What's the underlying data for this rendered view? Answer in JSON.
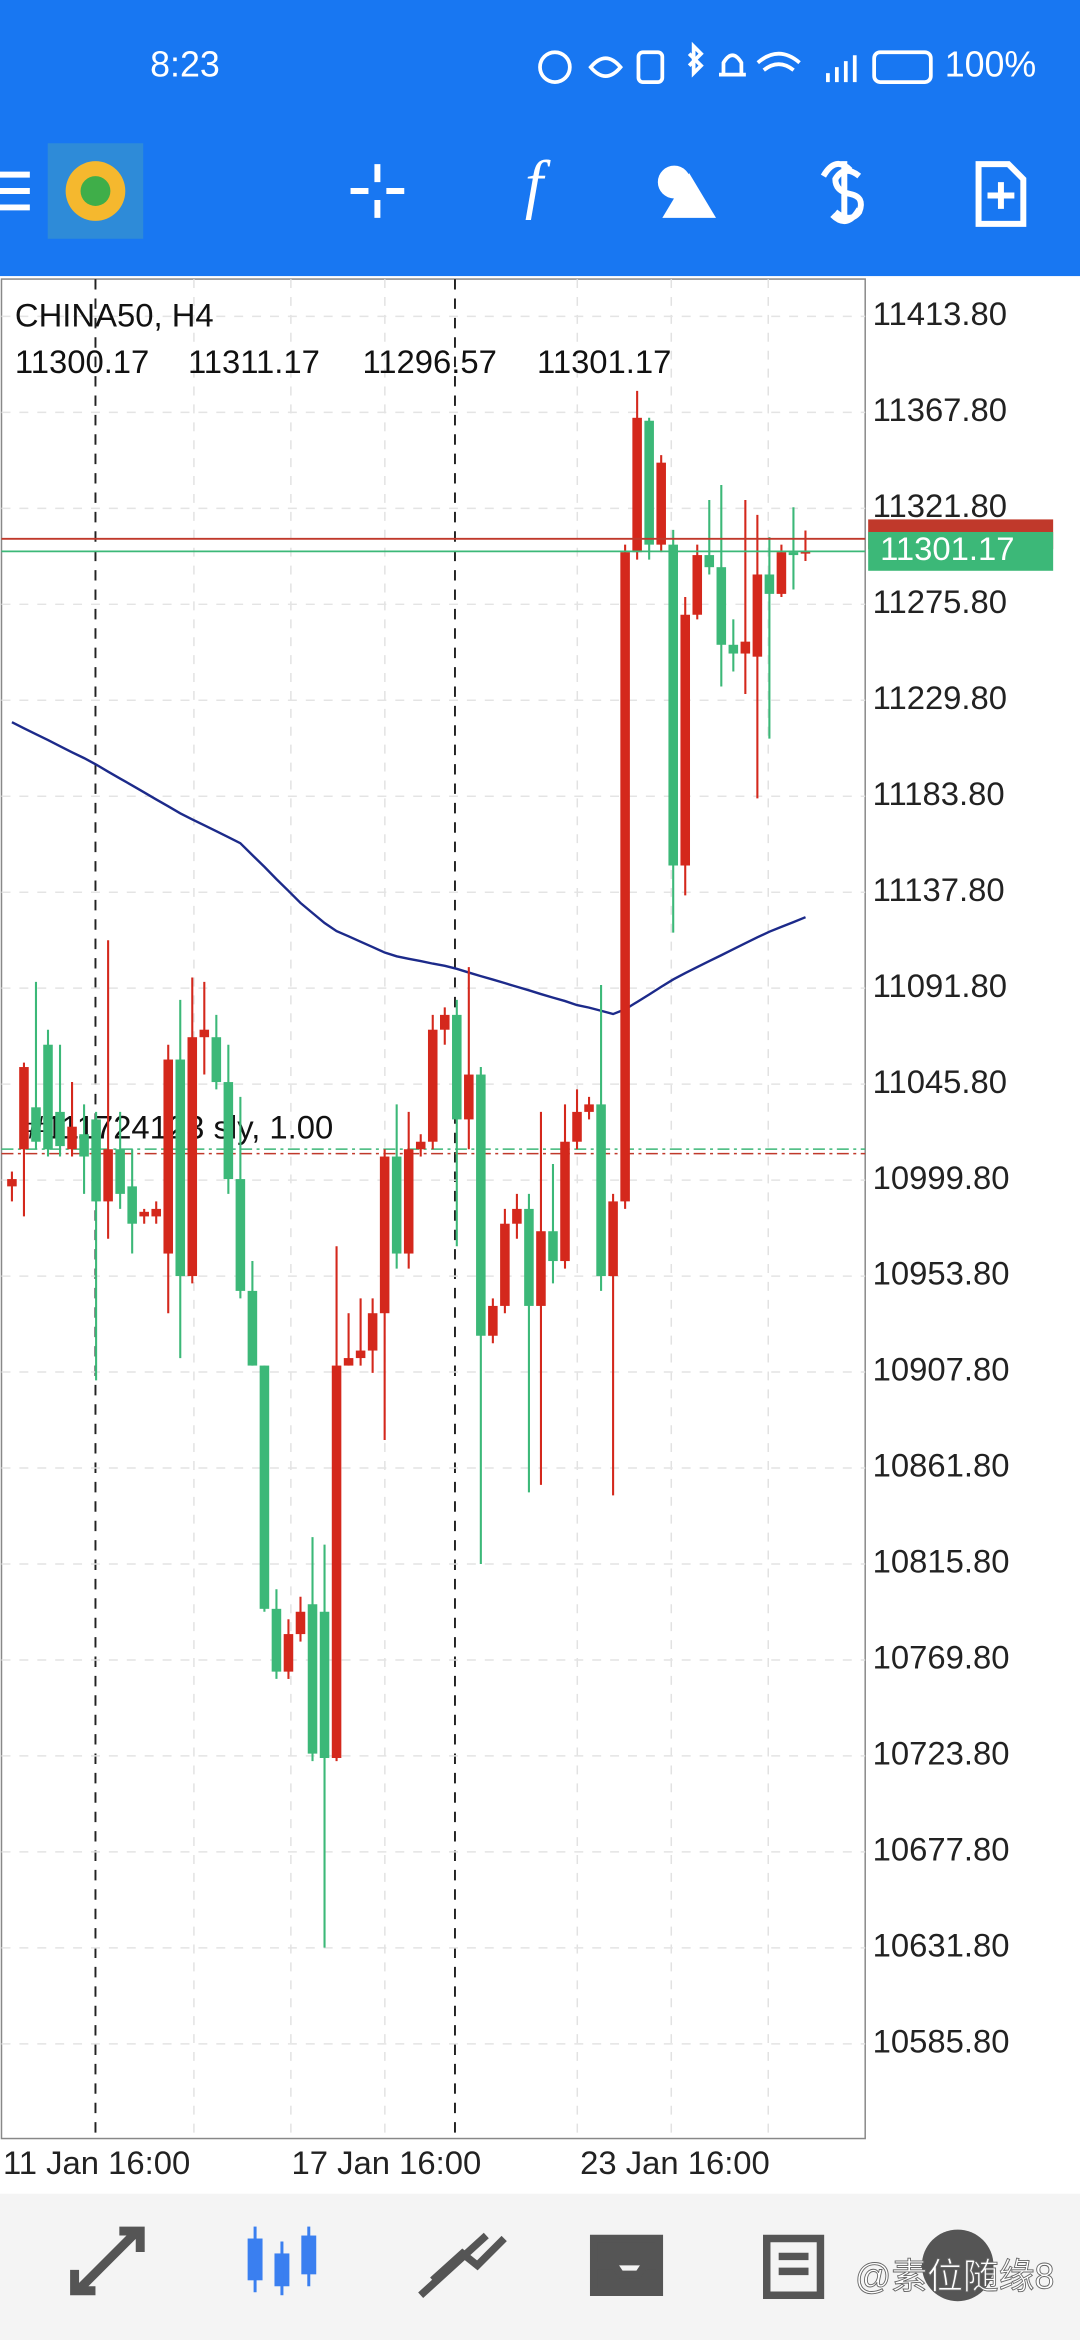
{
  "status_bar": {
    "time": "8:23",
    "battery": "100%"
  },
  "toolbar": {
    "indicator_icon": "f"
  },
  "chart_data": {
    "type": "candlestick",
    "title": "CHINA50, H4",
    "categories": [
      "11 Jan 16:00",
      null,
      null,
      null,
      null,
      null,
      null,
      null,
      null,
      null,
      null,
      null,
      null,
      null,
      null,
      null,
      null,
      null,
      null,
      null,
      null,
      null,
      null,
      null,
      "17 Jan 16:00",
      null,
      null,
      null,
      null,
      null,
      null,
      null,
      null,
      null,
      null,
      null,
      null,
      null,
      null,
      null,
      null,
      null,
      null,
      null,
      null,
      null,
      null,
      null,
      "23 Jan 16:00",
      null,
      null,
      null,
      null,
      null,
      null,
      null,
      null,
      null,
      null,
      null,
      null,
      null,
      null,
      null,
      null,
      null,
      null
    ],
    "open": [
      10996.8,
      11014.6,
      11034.7,
      11064.7,
      11032.5,
      11014.6,
      11021.8,
      11028.9,
      10989.6,
      11014.6,
      10996.8,
      10982.4,
      10982.4,
      10964.6,
      11057.6,
      10953.8,
      11068.3,
      11068.3,
      11046.8,
      11000.3,
      10946.7,
      10910.9,
      10794.3,
      10764.2,
      10782.2,
      10796.5,
      10792.9,
      10722.8,
      10910.9,
      10914.5,
      10918.1,
      10936.0,
      11011.1,
      10964.6,
      11014.6,
      11018.2,
      11071.9,
      11079.0,
      11028.9,
      11050.4,
      10925.2,
      10939.5,
      10978.9,
      10986.0,
      10939.5,
      10975.3,
      10961.0,
      11018.2,
      11032.5,
      11036.1,
      10953.8,
      10989.6,
      11300.8,
      11363.8,
      11304.4,
      11304.4,
      11150.6,
      11270.8,
      11299.4,
      11293.6,
      11256.4,
      11252.2,
      11250.7,
      11290.1,
      11280.8,
      11300.8,
      11300.17
    ],
    "high": [
      11003.9,
      11056.1,
      11094.8,
      11071.9,
      11064.7,
      11046.8,
      11036.1,
      11032.5,
      11114.8,
      11032.5,
      11014.6,
      10986.0,
      10989.6,
      11064.7,
      11086.2,
      11096.9,
      11094.8,
      11079.0,
      11064.7,
      11039.7,
      10961.0,
      10910.9,
      10803.7,
      10789.3,
      10800.1,
      10828.7,
      10825.1,
      10968.1,
      10936.0,
      10943.1,
      10943.1,
      11014.6,
      11036.1,
      11032.5,
      11021.8,
      11079.0,
      11082.6,
      11086.2,
      11101.9,
      11054.0,
      10943.1,
      10986.0,
      10993.2,
      10993.2,
      11032.5,
      11007.5,
      11036.1,
      11043.3,
      11039.7,
      11093.3,
      10993.2,
      11304.4,
      11378.1,
      11365.2,
      11347.3,
      11311.5,
      11279.3,
      11304.4,
      11325.8,
      11333.0,
      11268.6,
      11325.8,
      11318.7,
      11308.0,
      11304.4,
      11322.3,
      11311.17
    ],
    "low": [
      10989.6,
      10982.4,
      11014.6,
      11011.1,
      11011.1,
      11011.1,
      10993.2,
      10903.8,
      10971.7,
      10986.0,
      10964.6,
      10978.9,
      10978.9,
      10936.0,
      10914.5,
      10950.3,
      11050.4,
      11043.3,
      10993.2,
      10943.1,
      10910.9,
      10792.9,
      10760.7,
      10760.7,
      10778.6,
      10721.3,
      10631.9,
      10721.3,
      10910.9,
      10910.9,
      10907.4,
      10875.2,
      10957.4,
      10957.4,
      11011.1,
      11014.6,
      11064.7,
      10968.1,
      11014.6,
      10815.8,
      10921.6,
      10936.0,
      10971.7,
      10850.1,
      10853.7,
      10950.3,
      10957.4,
      11014.6,
      11028.9,
      10946.7,
      10848.7,
      10986.0,
      11297.2,
      11297.2,
      11300.8,
      11118.4,
      11136.3,
      11268.6,
      11290.1,
      11236.4,
      11243.6,
      11232.8,
      11182.8,
      11211.4,
      11279.3,
      11282.9,
      11296.57
    ],
    "close": [
      11000.3,
      11054.0,
      11018.2,
      11014.6,
      11016.1,
      11025.4,
      11011.1,
      10989.6,
      11014.6,
      10993.2,
      10978.9,
      10984.6,
      10986.0,
      11057.6,
      10953.8,
      11068.3,
      11071.9,
      11046.8,
      11000.3,
      10946.7,
      10910.9,
      10794.3,
      10764.2,
      10782.2,
      10792.9,
      10724.9,
      10722.8,
      10910.9,
      10914.5,
      10918.1,
      10936.0,
      11011.1,
      10964.6,
      11014.6,
      11018.2,
      11071.9,
      11079.0,
      11028.9,
      11050.4,
      10925.2,
      10939.5,
      10978.9,
      10986.0,
      10939.5,
      10975.3,
      10961.0,
      11018.2,
      11032.5,
      11036.1,
      10953.8,
      10989.6,
      11300.8,
      11365.2,
      11304.4,
      11343.7,
      11150.6,
      11270.8,
      11299.4,
      11293.6,
      11256.4,
      11252.2,
      11257.9,
      11290.1,
      11280.8,
      11300.8,
      11299.4,
      11301.17
    ],
    "up_color": "#d4281c",
    "down_color": "#3cb878",
    "ma": {
      "color": "#1c2a8a",
      "values": [
        11219.3,
        11216.4,
        11213.5,
        11210.7,
        11207.8,
        11204.9,
        11202.1,
        11199.0,
        11195.6,
        11192.3,
        11189.0,
        11185.6,
        11182.3,
        11179.0,
        11175.6,
        11172.7,
        11169.9,
        11167.0,
        11164.2,
        11161.3,
        11155.6,
        11149.9,
        11144.1,
        11138.4,
        11132.7,
        11127.8,
        11123.0,
        11119.2,
        11116.7,
        11114.1,
        11111.5,
        11108.9,
        11107.1,
        11105.9,
        11104.8,
        11103.6,
        11102.5,
        11101.1,
        11099.3,
        11097.6,
        11095.9,
        11094.2,
        11092.5,
        11090.8,
        11089.0,
        11087.3,
        11085.6,
        11083.7,
        11082.5,
        11081.0,
        11079.4,
        11081.7,
        11085.2,
        11088.8,
        11092.4,
        11096.0,
        11099.1,
        11101.9,
        11104.8,
        11107.6,
        11110.5,
        11113.4,
        11116.2,
        11118.9,
        11121.2,
        11123.5,
        11125.8
      ]
    },
    "bid_color": "#3cb878",
    "ask": {
      "value": 11307.2,
      "color": "#c0392b"
    },
    "order": {
      "label": "#111724123 sly, 1.00",
      "value": 11012.5,
      "color": "#c0392b"
    },
    "ylim": [
      10540.4,
      11431.7
    ],
    "yticks": [
      {
        "value": 11413.8,
        "label": "11413.80"
      },
      {
        "value": 11367.8,
        "label": "11367.80"
      },
      {
        "value": 11321.8,
        "label": "11321.80"
      },
      {
        "value": 11275.8,
        "label": "11275.80"
      },
      {
        "value": 11229.8,
        "label": "11229.80"
      },
      {
        "value": 11183.8,
        "label": "11183.80"
      },
      {
        "value": 11137.8,
        "label": "11137.80"
      },
      {
        "value": 11091.8,
        "label": "11091.80"
      },
      {
        "value": 11045.8,
        "label": "11045.80"
      },
      {
        "value": 10999.8,
        "label": "10999.80"
      },
      {
        "value": 10953.8,
        "label": "10953.80"
      },
      {
        "value": 10907.8,
        "label": "10907.80"
      },
      {
        "value": 10861.8,
        "label": "10861.80"
      },
      {
        "value": 10815.8,
        "label": "10815.80"
      },
      {
        "value": 10769.8,
        "label": "10769.80"
      },
      {
        "value": 10723.8,
        "label": "10723.80"
      },
      {
        "value": 10677.8,
        "label": "10677.80"
      },
      {
        "value": 10631.8,
        "label": "10631.80"
      },
      {
        "value": 10585.8,
        "label": "10585.80"
      }
    ],
    "grid": true
  },
  "watermark": "@素位随缘8"
}
